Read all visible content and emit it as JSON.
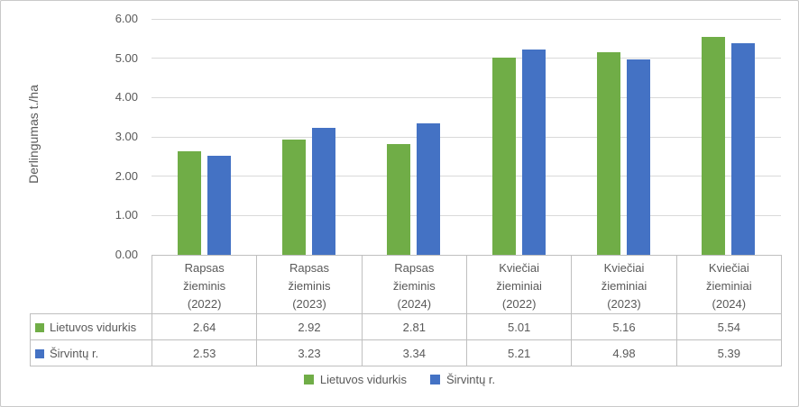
{
  "chart_data": {
    "type": "bar",
    "title": "",
    "ylabel": "Derlingumas t./ha",
    "xlabel": "",
    "categories": [
      {
        "lines": [
          "Rapsas",
          "žieminis",
          "(2022)"
        ]
      },
      {
        "lines": [
          "Rapsas",
          "žieminis",
          "(2023)"
        ]
      },
      {
        "lines": [
          "Rapsas",
          "žieminis",
          "(2024)"
        ]
      },
      {
        "lines": [
          "Kviečiai",
          "žieminiai",
          "(2022)"
        ]
      },
      {
        "lines": [
          "Kviečiai",
          "žieminiai",
          "(2023)"
        ]
      },
      {
        "lines": [
          "Kviečiai",
          "žieminiai",
          "(2024)"
        ]
      }
    ],
    "series": [
      {
        "name": "Lietuvos vidurkis",
        "color": "#70AD47",
        "values": [
          2.64,
          2.92,
          2.81,
          5.01,
          5.16,
          5.54
        ]
      },
      {
        "name": "Širvintų r.",
        "color": "#4472C4",
        "values": [
          2.53,
          3.23,
          3.34,
          5.21,
          4.98,
          5.39
        ]
      }
    ],
    "y_axis": {
      "min": 0,
      "max": 6,
      "step": 1,
      "tick_labels": [
        "0.00",
        "1.00",
        "2.00",
        "3.00",
        "4.00",
        "5.00",
        "6.00"
      ]
    },
    "grid": true,
    "legend_position": "bottom",
    "has_data_table": true,
    "value_decimals": 2
  },
  "style": {
    "text_color": "#595959",
    "gridline_color": "#D9D9D9",
    "table_border_color": "#BFBFBF",
    "frame_border_color": "#C9C9C9",
    "background": "#FFFFFF"
  }
}
